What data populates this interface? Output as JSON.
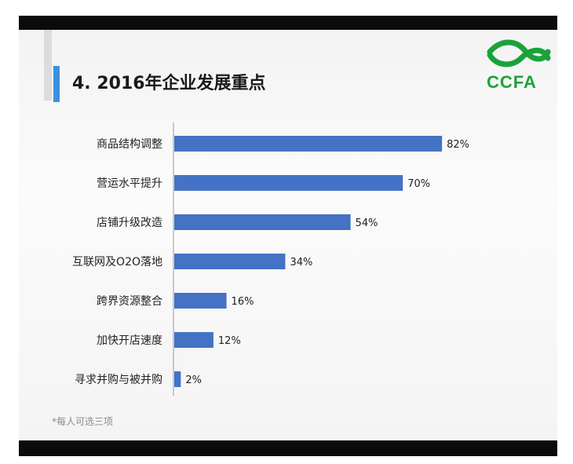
{
  "slide": {
    "title": "4. 2016年企业发展重点",
    "logo_text": "CCFA",
    "footnote": "*每人可选三项"
  },
  "colors": {
    "bar": "#4472c4",
    "accent": "#3d8fe0",
    "logo": "#1aa33a"
  },
  "chart_data": {
    "type": "bar",
    "orientation": "horizontal",
    "title": "",
    "xlabel": "",
    "ylabel": "",
    "xlim": [
      0,
      100
    ],
    "categories": [
      "商品结构调整",
      "营运水平提升",
      "店铺升级改造",
      "互联网及O2O落地",
      "跨界资源整合",
      "加快开店速度",
      "寻求并购与被并购"
    ],
    "values": [
      82,
      70,
      54,
      34,
      16,
      12,
      2
    ],
    "value_labels": [
      "82%",
      "70%",
      "54%",
      "34%",
      "16%",
      "12%",
      "2%"
    ],
    "grid": false,
    "legend": "none"
  }
}
